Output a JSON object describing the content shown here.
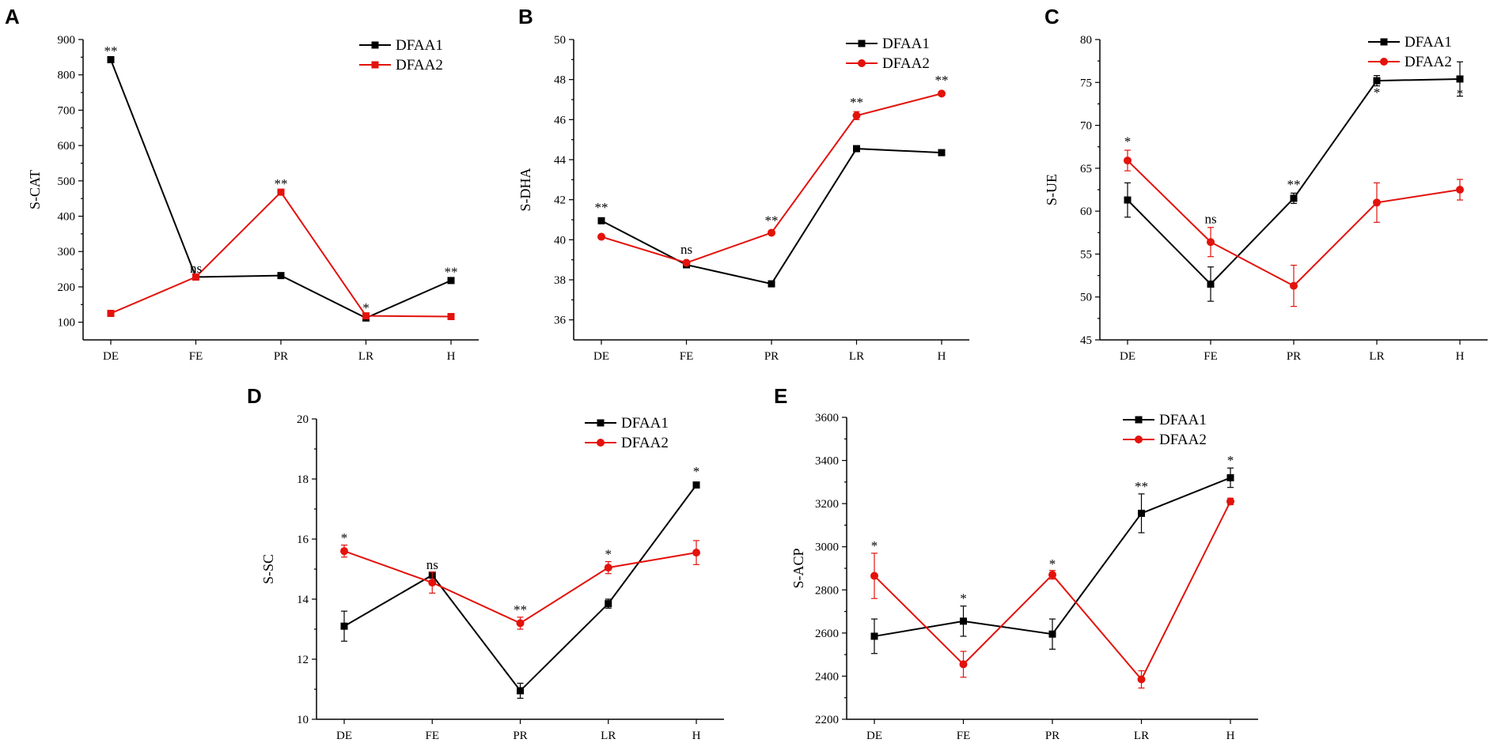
{
  "series_colors": {
    "DFAA1": "#000000",
    "DFAA2": "#e3120b"
  },
  "chart_data": [
    {
      "panel": "A",
      "type": "line",
      "ylabel": "S-CAT",
      "xlabel": "",
      "categories": [
        "DE",
        "FE",
        "PR",
        "LR",
        "H"
      ],
      "ylim": [
        50,
        900
      ],
      "yticks": [
        100,
        200,
        300,
        400,
        500,
        600,
        700,
        800,
        900
      ],
      "legend": "top-right",
      "series": [
        {
          "name": "DFAA1",
          "marker": "square",
          "values": [
            843,
            228,
            232,
            112,
            218
          ],
          "errors": [
            0,
            0,
            0,
            0,
            0
          ]
        },
        {
          "name": "DFAA2",
          "marker": "square",
          "values": [
            125,
            228,
            468,
            118,
            116
          ],
          "errors": [
            0,
            0,
            0,
            0,
            0
          ]
        }
      ],
      "annotations": [
        {
          "category": "DE",
          "value": 855,
          "text": "**"
        },
        {
          "category": "FE",
          "value": 240,
          "text": "ns"
        },
        {
          "category": "PR",
          "value": 480,
          "text": "**"
        },
        {
          "category": "LR",
          "value": 128,
          "text": "*"
        },
        {
          "category": "H",
          "value": 230,
          "text": "**"
        }
      ]
    },
    {
      "panel": "B",
      "type": "line",
      "ylabel": "S-DHA",
      "xlabel": "",
      "categories": [
        "DE",
        "FE",
        "PR",
        "LR",
        "H"
      ],
      "ylim": [
        35,
        50
      ],
      "yticks": [
        36,
        38,
        40,
        42,
        44,
        46,
        48,
        50
      ],
      "legend": "top-right",
      "series": [
        {
          "name": "DFAA1",
          "marker": "square",
          "values": [
            40.95,
            38.75,
            37.8,
            44.55,
            44.35
          ],
          "errors": [
            0,
            0,
            0,
            0,
            0
          ]
        },
        {
          "name": "DFAA2",
          "marker": "circle",
          "values": [
            40.15,
            38.85,
            40.35,
            46.2,
            47.3
          ],
          "errors": [
            0,
            0,
            0,
            0.2,
            0
          ]
        }
      ],
      "annotations": [
        {
          "category": "DE",
          "value": 41.4,
          "text": "**"
        },
        {
          "category": "FE",
          "value": 39.3,
          "text": "ns"
        },
        {
          "category": "PR",
          "value": 40.75,
          "text": "**"
        },
        {
          "category": "LR",
          "value": 46.65,
          "text": "**"
        },
        {
          "category": "H",
          "value": 47.75,
          "text": "**"
        }
      ]
    },
    {
      "panel": "C",
      "type": "line",
      "ylabel": "S-UE",
      "xlabel": "",
      "categories": [
        "DE",
        "FE",
        "PR",
        "LR",
        "H"
      ],
      "ylim": [
        45,
        80
      ],
      "yticks": [
        45,
        50,
        55,
        60,
        65,
        70,
        75,
        80
      ],
      "legend": "top-right",
      "series": [
        {
          "name": "DFAA1",
          "marker": "square",
          "values": [
            61.3,
            51.5,
            61.5,
            75.2,
            75.4
          ],
          "errors": [
            2.0,
            2.0,
            0.6,
            0.6,
            2.0
          ]
        },
        {
          "name": "DFAA2",
          "marker": "circle",
          "values": [
            65.9,
            56.4,
            51.3,
            61.0,
            62.5
          ],
          "errors": [
            1.2,
            1.7,
            2.4,
            2.3,
            1.2
          ]
        }
      ],
      "annotations": [
        {
          "category": "DE",
          "value": 67.6,
          "text": "*"
        },
        {
          "category": "FE",
          "value": 58.6,
          "text": "ns"
        },
        {
          "category": "PR",
          "value": 62.6,
          "text": "**"
        },
        {
          "category": "LR",
          "value": 73.3,
          "text": "*"
        },
        {
          "category": "H",
          "value": 73.2,
          "text": "*"
        }
      ]
    },
    {
      "panel": "D",
      "type": "line",
      "ylabel": "S-SC",
      "xlabel": "",
      "categories": [
        "DE",
        "FE",
        "PR",
        "LR",
        "H"
      ],
      "ylim": [
        10,
        20
      ],
      "yticks": [
        10,
        12,
        14,
        16,
        18,
        20
      ],
      "legend": "top-right",
      "series": [
        {
          "name": "DFAA1",
          "marker": "square",
          "values": [
            13.1,
            14.8,
            10.95,
            13.85,
            17.8
          ],
          "errors": [
            0.5,
            0.1,
            0.25,
            0.15,
            0
          ]
        },
        {
          "name": "DFAA2",
          "marker": "circle",
          "values": [
            15.6,
            14.55,
            13.2,
            15.05,
            15.55
          ],
          "errors": [
            0.2,
            0.35,
            0.2,
            0.2,
            0.4
          ]
        }
      ],
      "annotations": [
        {
          "category": "DE",
          "value": 15.9,
          "text": "*"
        },
        {
          "category": "FE",
          "value": 15.0,
          "text": "ns"
        },
        {
          "category": "PR",
          "value": 13.5,
          "text": "**"
        },
        {
          "category": "LR",
          "value": 15.35,
          "text": "*"
        },
        {
          "category": "H",
          "value": 18.1,
          "text": "*"
        }
      ]
    },
    {
      "panel": "E",
      "type": "line",
      "ylabel": "S-ACP",
      "xlabel": "",
      "categories": [
        "DE",
        "FE",
        "PR",
        "LR",
        "H"
      ],
      "ylim": [
        2200,
        3600
      ],
      "yticks": [
        2200,
        2400,
        2600,
        2800,
        3000,
        3200,
        3400,
        3600
      ],
      "legend": "top-right",
      "series": [
        {
          "name": "DFAA1",
          "marker": "square",
          "values": [
            2585,
            2655,
            2595,
            3155,
            3320
          ],
          "errors": [
            80,
            70,
            70,
            90,
            45
          ]
        },
        {
          "name": "DFAA2",
          "marker": "circle",
          "values": [
            2865,
            2455,
            2870,
            2385,
            3210
          ],
          "errors": [
            105,
            60,
            20,
            40,
            15
          ]
        }
      ],
      "annotations": [
        {
          "category": "DE",
          "value": 2985,
          "text": "*"
        },
        {
          "category": "FE",
          "value": 2740,
          "text": "*"
        },
        {
          "category": "PR",
          "value": 2900,
          "text": "*"
        },
        {
          "category": "LR",
          "value": 3260,
          "text": "**"
        },
        {
          "category": "H",
          "value": 3380,
          "text": "*"
        }
      ]
    }
  ]
}
